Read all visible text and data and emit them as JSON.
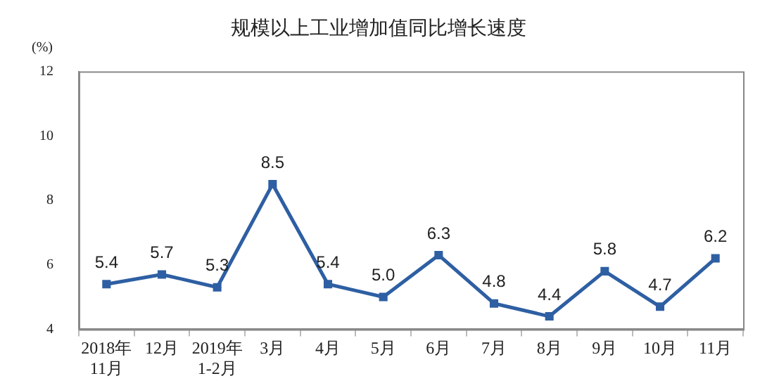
{
  "chart_data": {
    "type": "line",
    "title": "规模以上工业增加值同比增长速度",
    "ylabel": "(%)",
    "categories": [
      "2018年\n11月",
      "12月",
      "2019年\n1-2月",
      "3月",
      "4月",
      "5月",
      "6月",
      "7月",
      "8月",
      "9月",
      "10月",
      "11月"
    ],
    "series": [
      {
        "color": "#2e5fa3",
        "values": [
          5.4,
          5.7,
          5.3,
          8.5,
          5.4,
          5.0,
          6.3,
          4.8,
          4.4,
          5.8,
          4.7,
          6.2
        ],
        "value_labels": [
          "5.4",
          "5.7",
          "5.3",
          "8.5",
          "5.4",
          "5.0",
          "6.3",
          "4.8",
          "4.4",
          "5.8",
          "4.7",
          "6.2"
        ]
      }
    ],
    "ylim": [
      4,
      12
    ],
    "yticks": [
      4,
      6,
      8,
      10,
      12
    ],
    "grid": false,
    "legend": false,
    "marker": "square",
    "line_style": "solid"
  }
}
